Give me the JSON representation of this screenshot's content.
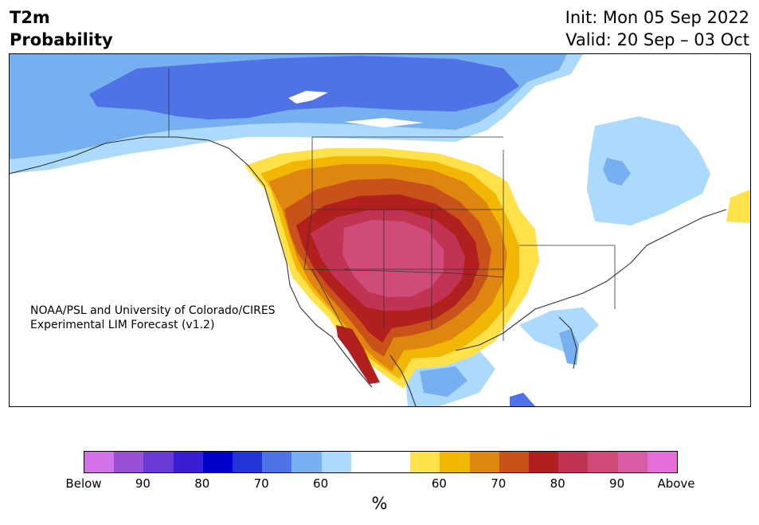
{
  "header": {
    "title_line1": "T2m",
    "title_line2": "Probability",
    "init": "Init: Mon 05 Sep 2022",
    "valid": "Valid: 20 Sep – 03 Oct"
  },
  "credit": {
    "line1": "NOAA/PSL and University of Colorado/CIRES",
    "line2": "Experimental LIM Forecast (v1.2)"
  },
  "colorbar": {
    "unit": "%",
    "colors": [
      "#d571e8",
      "#9a4fd8",
      "#6a3bd6",
      "#3a1fd2",
      "#0000cc",
      "#2235d6",
      "#4f73e6",
      "#76b0f0",
      "#acdafc",
      "#ffffff",
      "#ffffff",
      "#ffe14a",
      "#f2b705",
      "#df8610",
      "#c8521a",
      "#b21f1f",
      "#c13352",
      "#cf4b79",
      "#d95ba3",
      "#e56fd9"
    ],
    "tick_labels": [
      "Below",
      "90",
      "80",
      "70",
      "60",
      "60",
      "70",
      "80",
      "90",
      "Above"
    ]
  },
  "palette": {
    "blue_light": "#acdafc",
    "blue_mid": "#76b0f0",
    "blue_dark": "#4f73e6",
    "yellow": "#ffe14a",
    "gold": "#f2b705",
    "orange": "#df8610",
    "burnt": "#c8521a",
    "red": "#b21f1f",
    "crimson": "#c13352",
    "pink": "#cf4b79",
    "border": "#333333"
  }
}
